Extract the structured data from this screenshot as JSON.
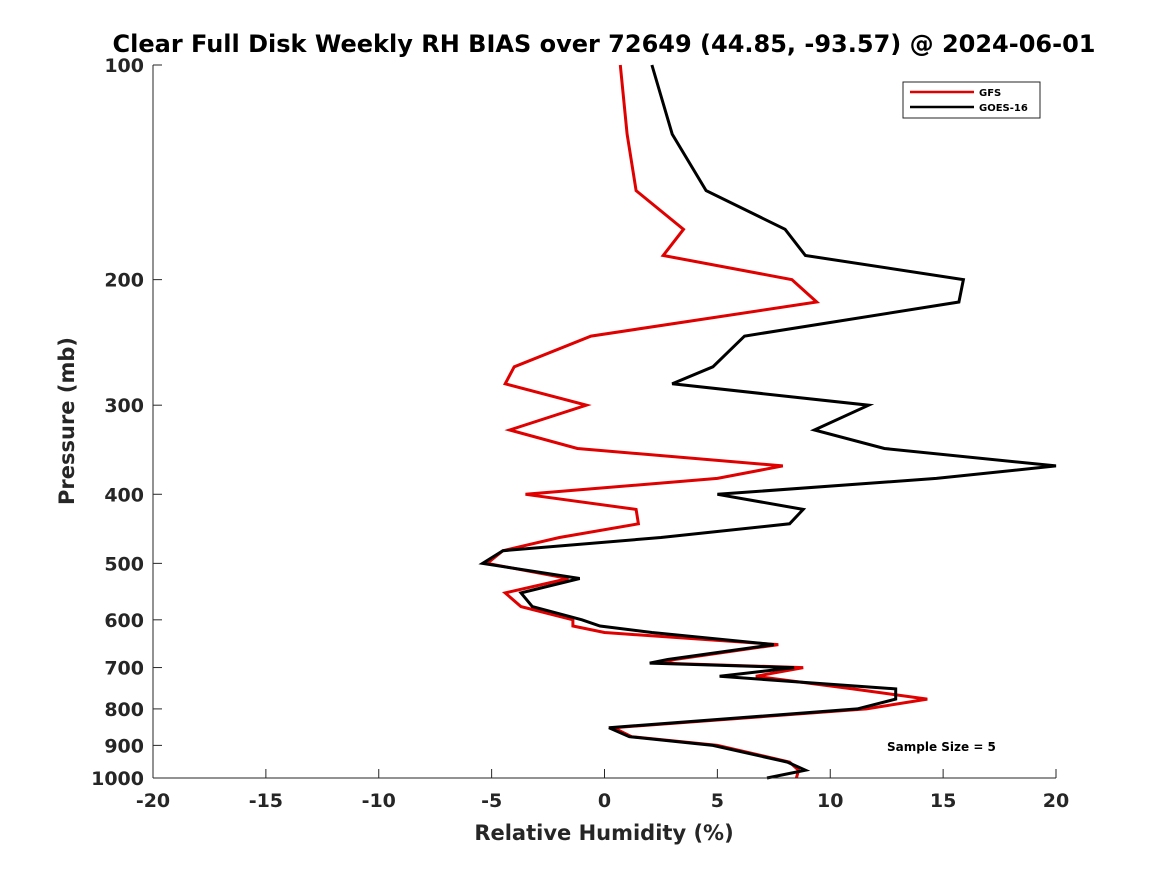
{
  "chart_data": {
    "type": "line",
    "title": "Clear Full Disk Weekly RH BIAS over 72649 (44.85, -93.57) @ 2024-06-01",
    "xlabel": "Relative Humidity (%)",
    "ylabel": "Pressure (mb)",
    "xlim": [
      -20,
      20
    ],
    "ylim": [
      100,
      1000
    ],
    "y_scale": "log",
    "y_reversed": true,
    "grid": false,
    "legend_position": "top-right",
    "xticks": [
      "-20",
      "-15",
      "-10",
      "-5",
      "0",
      "5",
      "10",
      "15",
      "20"
    ],
    "yticks": [
      "100",
      "200",
      "300",
      "400",
      "500",
      "600",
      "700",
      "800",
      "900",
      "1000"
    ],
    "colors": {
      "GFS": "#e00000",
      "GOES-16": "#000000"
    },
    "annotation": "Sample Size = 5",
    "series": [
      {
        "name": "GFS",
        "points": [
          [
            0.7,
            100
          ],
          [
            1.0,
            125
          ],
          [
            1.4,
            150
          ],
          [
            3.5,
            170
          ],
          [
            2.6,
            185
          ],
          [
            8.3,
            200
          ],
          [
            9.4,
            215
          ],
          [
            -0.6,
            240
          ],
          [
            -4.0,
            265
          ],
          [
            -4.4,
            280
          ],
          [
            -0.8,
            300
          ],
          [
            -4.2,
            325
          ],
          [
            -1.2,
            345
          ],
          [
            7.9,
            365
          ],
          [
            5.0,
            380
          ],
          [
            -3.5,
            400
          ],
          [
            1.4,
            420
          ],
          [
            1.5,
            440
          ],
          [
            -2.0,
            460
          ],
          [
            -4.5,
            480
          ],
          [
            -5.2,
            500
          ],
          [
            -1.6,
            525
          ],
          [
            -4.4,
            550
          ],
          [
            -3.7,
            575
          ],
          [
            -1.4,
            600
          ],
          [
            -1.4,
            612
          ],
          [
            0.0,
            625
          ],
          [
            7.7,
            650
          ],
          [
            3.1,
            682
          ],
          [
            2.5,
            690
          ],
          [
            8.8,
            700
          ],
          [
            6.7,
            720
          ],
          [
            11.0,
            750
          ],
          [
            14.3,
            775
          ],
          [
            11.6,
            800
          ],
          [
            0.4,
            850
          ],
          [
            1.2,
            875
          ],
          [
            5.0,
            900
          ],
          [
            8.2,
            950
          ],
          [
            8.6,
            975
          ],
          [
            8.5,
            1000
          ]
        ]
      },
      {
        "name": "GOES-16",
        "points": [
          [
            2.1,
            100
          ],
          [
            3.0,
            125
          ],
          [
            4.5,
            150
          ],
          [
            8.0,
            170
          ],
          [
            8.9,
            185
          ],
          [
            15.9,
            200
          ],
          [
            15.7,
            215
          ],
          [
            6.2,
            240
          ],
          [
            4.8,
            265
          ],
          [
            3.0,
            280
          ],
          [
            11.7,
            300
          ],
          [
            9.3,
            325
          ],
          [
            12.4,
            345
          ],
          [
            20.0,
            365
          ],
          [
            14.7,
            380
          ],
          [
            5.0,
            400
          ],
          [
            8.8,
            420
          ],
          [
            8.2,
            440
          ],
          [
            2.5,
            460
          ],
          [
            -4.5,
            480
          ],
          [
            -5.4,
            500
          ],
          [
            -1.1,
            525
          ],
          [
            -3.7,
            550
          ],
          [
            -3.2,
            575
          ],
          [
            -1.0,
            600
          ],
          [
            -0.2,
            612
          ],
          [
            2.1,
            625
          ],
          [
            7.5,
            650
          ],
          [
            2.8,
            682
          ],
          [
            2.0,
            690
          ],
          [
            8.4,
            700
          ],
          [
            5.1,
            720
          ],
          [
            12.9,
            750
          ],
          [
            12.9,
            775
          ],
          [
            11.2,
            800
          ],
          [
            0.2,
            850
          ],
          [
            1.1,
            875
          ],
          [
            4.8,
            900
          ],
          [
            8.1,
            950
          ],
          [
            8.9,
            975
          ],
          [
            7.2,
            1000
          ]
        ]
      }
    ]
  }
}
